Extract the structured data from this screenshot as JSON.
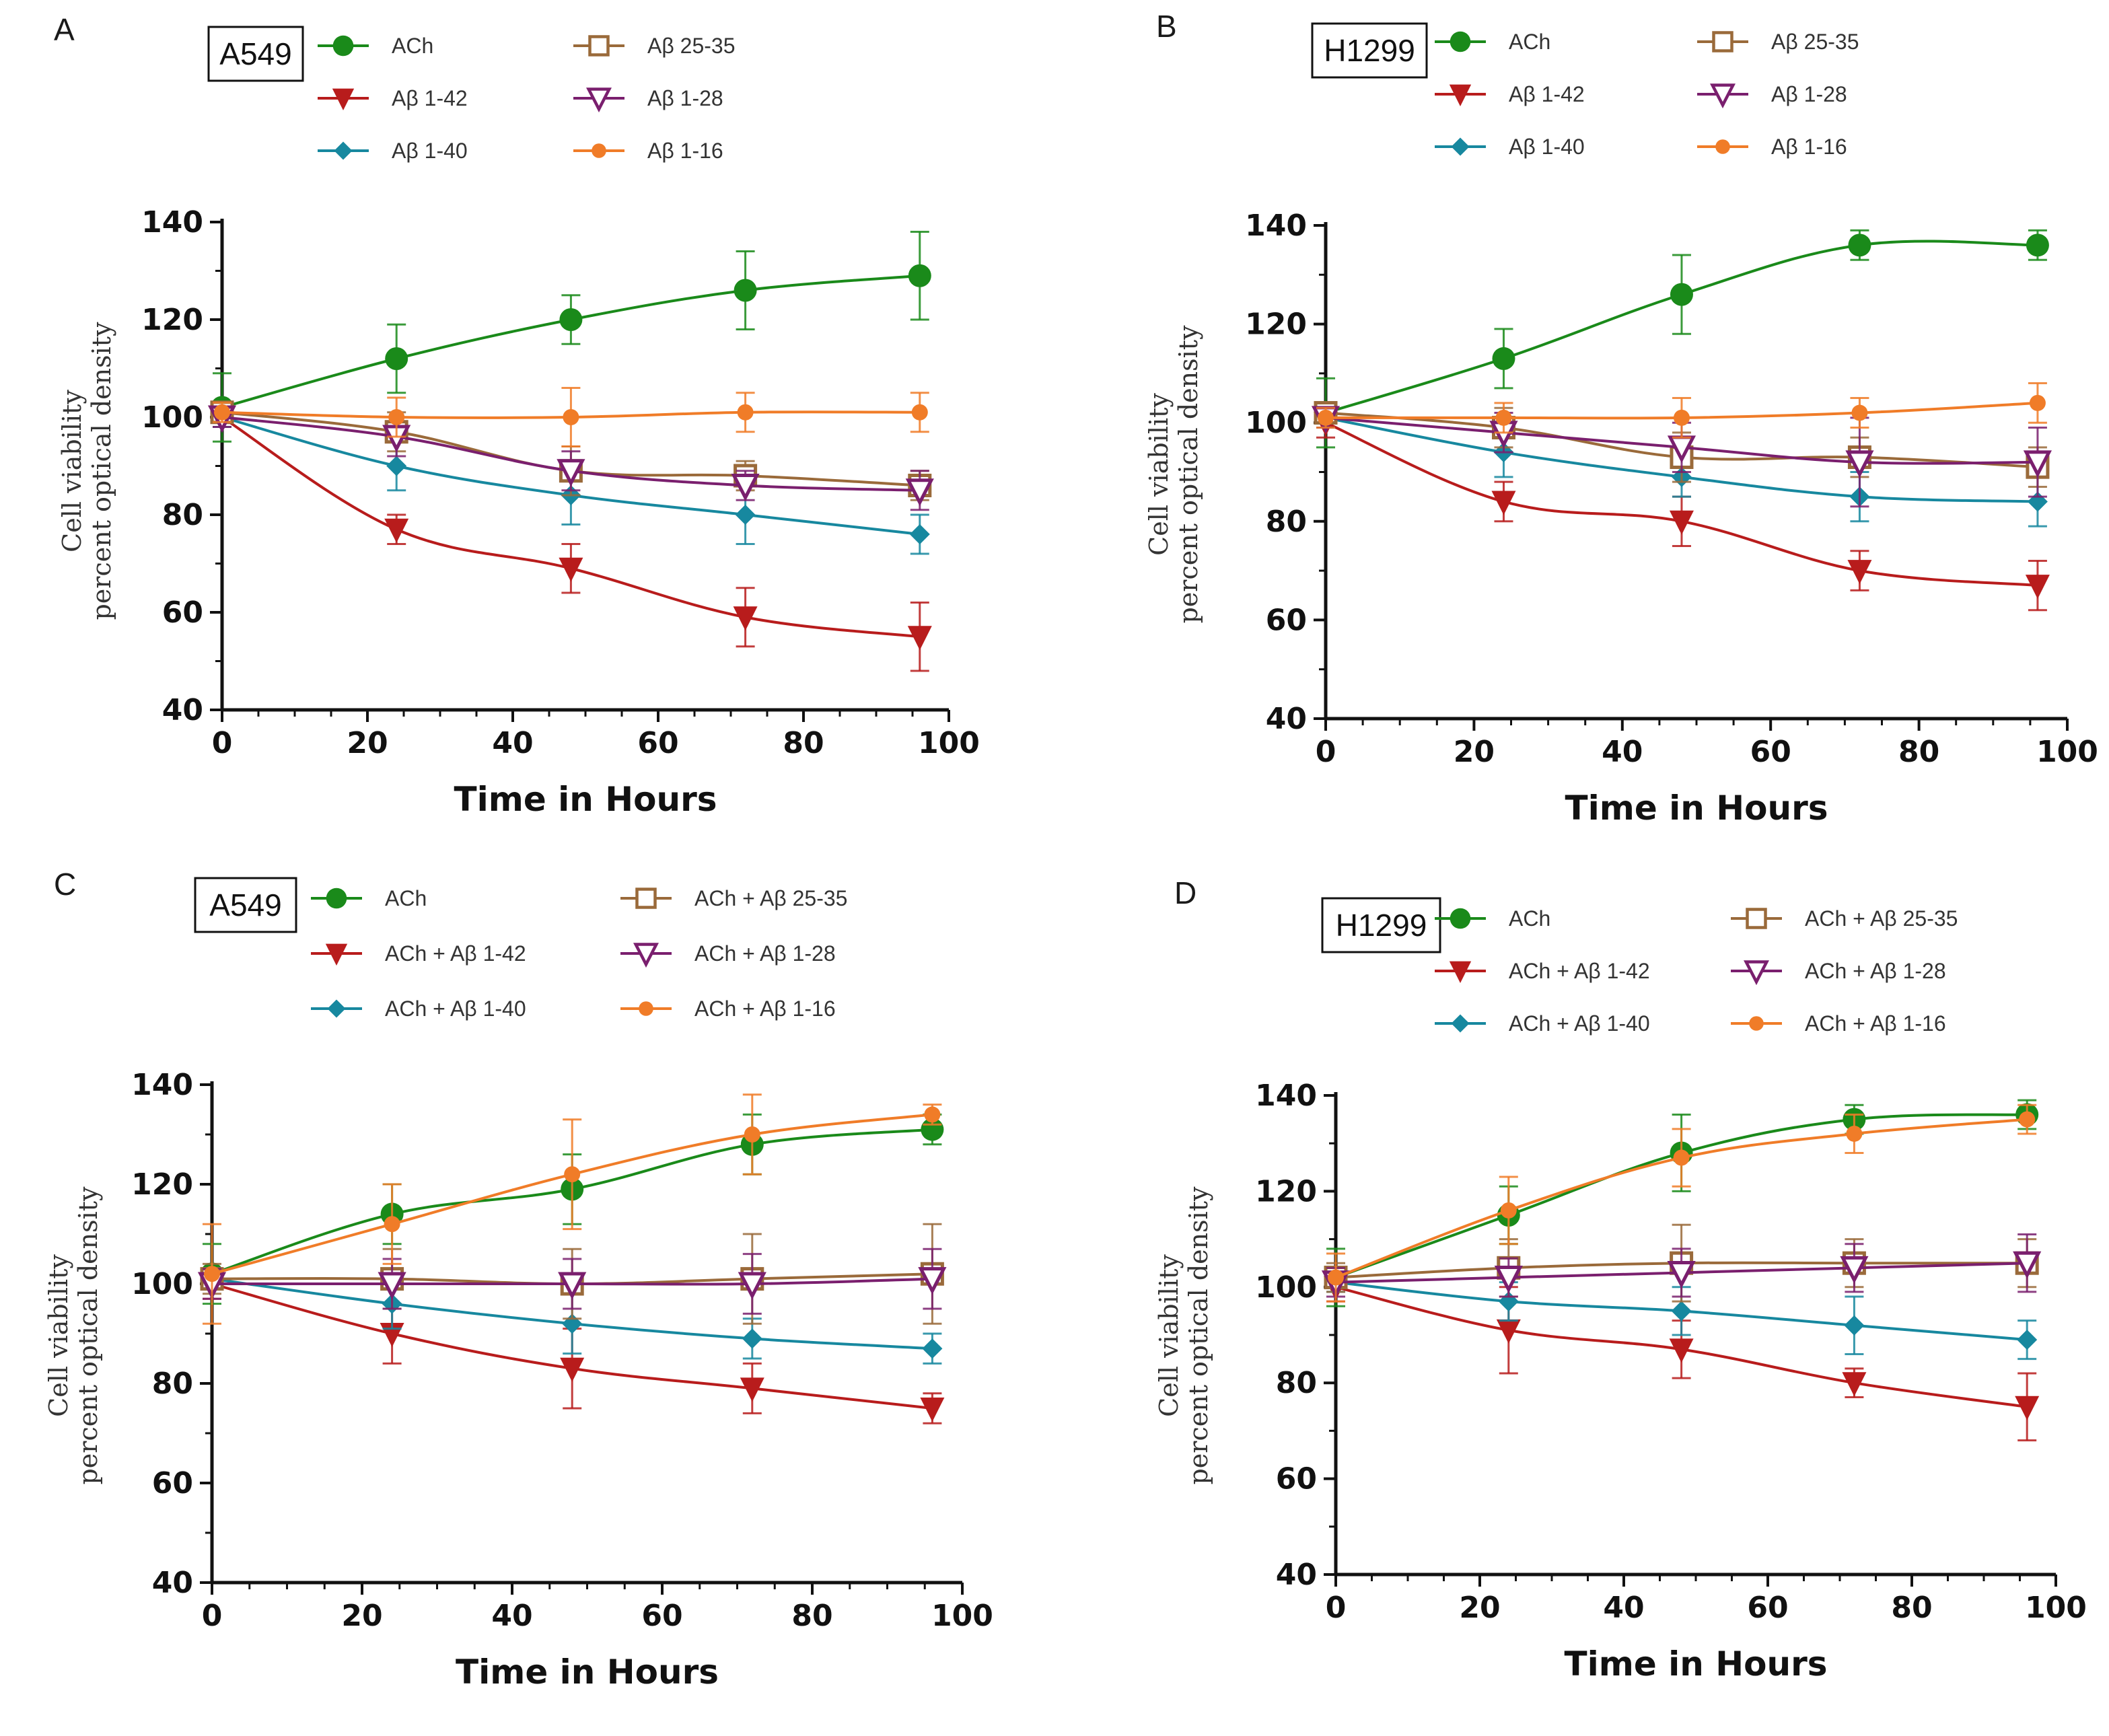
{
  "chart_data": [
    {
      "type": "line",
      "panel": "A",
      "cell_line": "A549",
      "xlabel": "Time in Hours",
      "ylabel_line1": "Cell viability",
      "ylabel_line2": "percent optical density",
      "xlim": [
        0,
        100
      ],
      "ylim": [
        40,
        140
      ],
      "xticks": [
        0,
        20,
        40,
        60,
        80,
        100
      ],
      "yticks": [
        40,
        60,
        80,
        100,
        120,
        140
      ],
      "x": [
        0,
        24,
        48,
        72,
        96
      ],
      "series": [
        {
          "name": "ACh",
          "color": "#1a8a1a",
          "marker": "circle",
          "values": [
            102,
            112,
            120,
            126,
            129
          ],
          "errors": [
            7,
            7,
            5,
            8,
            9
          ]
        },
        {
          "name": "Aβ 1-42",
          "color": "#b81c1c",
          "marker": "triangle-down",
          "values": [
            100,
            77,
            69,
            59,
            55
          ],
          "errors": [
            2,
            3,
            5,
            6,
            7
          ]
        },
        {
          "name": "Aβ 1-40",
          "color": "#17889f",
          "marker": "diamond",
          "values": [
            100,
            90,
            84,
            80,
            76
          ],
          "errors": [
            2,
            5,
            6,
            6,
            4
          ]
        },
        {
          "name": "Aβ 25-35",
          "color": "#9a6a3a",
          "marker": "square-open",
          "values": [
            101,
            97,
            89,
            88,
            86
          ],
          "errors": [
            2,
            4,
            5,
            3,
            3
          ]
        },
        {
          "name": "Aβ 1-28",
          "color": "#7a1f6e",
          "marker": "triangle-down-open",
          "values": [
            100,
            96,
            89,
            86,
            85
          ],
          "errors": [
            2,
            4,
            4,
            3,
            4
          ]
        },
        {
          "name": "Aβ 1-16",
          "color": "#f07c28",
          "marker": "circle-small",
          "values": [
            101,
            100,
            100,
            101,
            101
          ],
          "errors": [
            2,
            4,
            6,
            4,
            4
          ]
        }
      ]
    },
    {
      "type": "line",
      "panel": "B",
      "cell_line": "H1299",
      "xlabel": "Time in Hours",
      "ylabel_line1": "Cell viability",
      "ylabel_line2": "percent optical density",
      "xlim": [
        0,
        100
      ],
      "ylim": [
        40,
        140
      ],
      "xticks": [
        0,
        20,
        40,
        60,
        80,
        100
      ],
      "yticks": [
        40,
        60,
        80,
        100,
        120,
        140
      ],
      "x": [
        0,
        24,
        48,
        72,
        96
      ],
      "series": [
        {
          "name": "ACh",
          "color": "#1a8a1a",
          "marker": "circle",
          "values": [
            102,
            113,
            126,
            136,
            136
          ],
          "errors": [
            7,
            6,
            8,
            3,
            3
          ]
        },
        {
          "name": "Aβ 1-42",
          "color": "#b81c1c",
          "marker": "triangle-down",
          "values": [
            100,
            84,
            80,
            70,
            67
          ],
          "errors": [
            3,
            4,
            5,
            4,
            5
          ]
        },
        {
          "name": "Aβ 1-40",
          "color": "#17889f",
          "marker": "diamond",
          "values": [
            101,
            94,
            89,
            85,
            84
          ],
          "errors": [
            2,
            5,
            4,
            5,
            5
          ]
        },
        {
          "name": "Aβ 25-35",
          "color": "#9a6a3a",
          "marker": "square-open",
          "values": [
            102,
            99,
            93,
            93,
            91
          ],
          "errors": [
            2,
            4,
            5,
            4,
            4
          ]
        },
        {
          "name": "Aβ 1-28",
          "color": "#7a1f6e",
          "marker": "triangle-down-open",
          "values": [
            101,
            98,
            95,
            92,
            92
          ],
          "errors": [
            2,
            4,
            5,
            9,
            7
          ]
        },
        {
          "name": "Aβ 1-16",
          "color": "#f07c28",
          "marker": "circle-small",
          "values": [
            101,
            101,
            101,
            102,
            104
          ],
          "errors": [
            2,
            3,
            4,
            3,
            4
          ]
        }
      ]
    },
    {
      "type": "line",
      "panel": "C",
      "cell_line": "A549",
      "xlabel": "Time in Hours",
      "ylabel_line1": "Cell viability",
      "ylabel_line2": "percent optical density",
      "xlim": [
        0,
        100
      ],
      "ylim": [
        40,
        140
      ],
      "xticks": [
        0,
        20,
        40,
        60,
        80,
        100
      ],
      "yticks": [
        40,
        60,
        80,
        100,
        120,
        140
      ],
      "x": [
        0,
        24,
        48,
        72,
        96
      ],
      "series": [
        {
          "name": "ACh",
          "color": "#1a8a1a",
          "marker": "circle",
          "values": [
            102,
            114,
            119,
            128,
            131
          ],
          "errors": [
            6,
            6,
            7,
            6,
            3
          ]
        },
        {
          "name": "ACh + Aβ 1-42",
          "color": "#b81c1c",
          "marker": "triangle-down",
          "values": [
            100,
            90,
            83,
            79,
            75
          ],
          "errors": [
            3,
            6,
            8,
            5,
            3
          ]
        },
        {
          "name": "ACh + Aβ 1-40",
          "color": "#17889f",
          "marker": "diamond",
          "values": [
            101,
            96,
            92,
            89,
            87
          ],
          "errors": [
            2,
            5,
            6,
            4,
            3
          ]
        },
        {
          "name": "ACh + Aβ 25-35",
          "color": "#9a6a3a",
          "marker": "square-open",
          "values": [
            101,
            101,
            100,
            101,
            102
          ],
          "errors": [
            3,
            6,
            7,
            9,
            10
          ]
        },
        {
          "name": "ACh + Aβ 1-28",
          "color": "#7a1f6e",
          "marker": "triangle-down-open",
          "values": [
            100,
            100,
            100,
            100,
            101
          ],
          "errors": [
            3,
            5,
            5,
            6,
            6
          ]
        },
        {
          "name": "ACh + Aβ 1-16",
          "color": "#f07c28",
          "marker": "circle-small",
          "values": [
            102,
            112,
            122,
            130,
            134
          ],
          "errors": [
            10,
            8,
            11,
            8,
            2
          ]
        }
      ]
    },
    {
      "type": "line",
      "panel": "D",
      "cell_line": "H1299",
      "xlabel": "Time in Hours",
      "ylabel_line1": "Cell viability",
      "ylabel_line2": "percent optical density",
      "xlim": [
        0,
        100
      ],
      "ylim": [
        40,
        140
      ],
      "xticks": [
        0,
        20,
        40,
        60,
        80,
        100
      ],
      "yticks": [
        40,
        60,
        80,
        100,
        120,
        140
      ],
      "x": [
        0,
        24,
        48,
        72,
        96
      ],
      "series": [
        {
          "name": "ACh",
          "color": "#1a8a1a",
          "marker": "circle",
          "values": [
            102,
            115,
            128,
            135,
            136
          ],
          "errors": [
            6,
            6,
            8,
            3,
            3
          ]
        },
        {
          "name": "ACh + Aβ 1-42",
          "color": "#b81c1c",
          "marker": "triangle-down",
          "values": [
            100,
            91,
            87,
            80,
            75
          ],
          "errors": [
            3,
            9,
            6,
            3,
            7
          ]
        },
        {
          "name": "ACh + Aβ 1-40",
          "color": "#17889f",
          "marker": "diamond",
          "values": [
            101,
            97,
            95,
            92,
            89
          ],
          "errors": [
            2,
            4,
            5,
            6,
            4
          ]
        },
        {
          "name": "ACh + Aβ 25-35",
          "color": "#9a6a3a",
          "marker": "square-open",
          "values": [
            102,
            104,
            105,
            105,
            105
          ],
          "errors": [
            3,
            6,
            8,
            5,
            5
          ]
        },
        {
          "name": "ACh + Aβ 1-28",
          "color": "#7a1f6e",
          "marker": "triangle-down-open",
          "values": [
            101,
            102,
            103,
            104,
            105
          ],
          "errors": [
            3,
            4,
            5,
            5,
            6
          ]
        },
        {
          "name": "ACh + Aβ 1-16",
          "color": "#f07c28",
          "marker": "circle-small",
          "values": [
            102,
            116,
            127,
            132,
            135
          ],
          "errors": [
            5,
            7,
            6,
            4,
            3
          ]
        }
      ]
    }
  ]
}
